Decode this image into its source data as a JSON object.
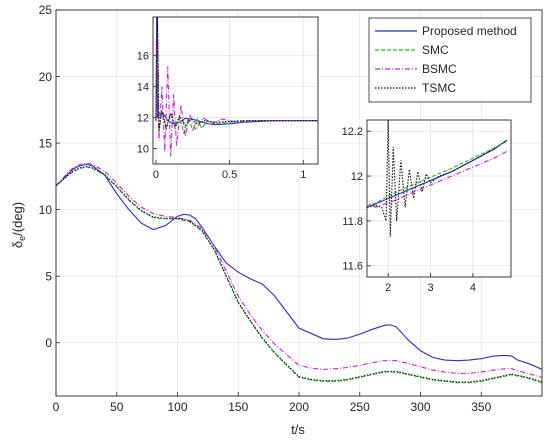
{
  "chart_data": {
    "type": "line",
    "xlabel": "t/s",
    "ylabel_main": "δ",
    "ylabel_sub": "e",
    "ylabel_tail": "/(deg)",
    "xlim": [
      0,
      400
    ],
    "ylim": [
      -4,
      25
    ],
    "xticks": [
      "0",
      "50",
      "100",
      "150",
      "200",
      "250",
      "300",
      "350"
    ],
    "yticks": [
      "0",
      "5",
      "10",
      "15",
      "20",
      "25"
    ],
    "colors": {
      "proposed": "#2b2bd6",
      "smc": "#22bb22",
      "bsmc": "#cc22cc",
      "tsmc": "#111111"
    },
    "legend": {
      "position": "top-right",
      "entries": [
        "Proposed method",
        "SMC",
        "BSMC",
        "TSMC"
      ]
    },
    "series": [
      {
        "name": "Proposed method",
        "x": [
          0,
          5,
          10,
          15,
          20,
          25,
          30,
          40,
          50,
          60,
          70,
          80,
          90,
          100,
          105,
          110,
          115,
          120,
          130,
          140,
          150,
          160,
          170,
          180,
          190,
          200,
          210,
          220,
          230,
          240,
          250,
          260,
          270,
          275,
          280,
          290,
          300,
          310,
          320,
          330,
          340,
          350,
          360,
          370,
          375,
          380,
          390,
          400
        ],
        "y": [
          11.8,
          12.2,
          12.7,
          13.1,
          13.3,
          13.4,
          13.3,
          12.6,
          11.2,
          10.0,
          9.0,
          8.5,
          8.8,
          9.5,
          9.65,
          9.6,
          9.3,
          8.7,
          7.3,
          6.0,
          5.3,
          4.8,
          4.4,
          3.5,
          2.3,
          1.1,
          0.7,
          0.3,
          0.25,
          0.35,
          0.65,
          1.0,
          1.3,
          1.35,
          1.2,
          0.2,
          -0.6,
          -1.1,
          -1.3,
          -1.35,
          -1.3,
          -1.2,
          -1.0,
          -0.95,
          -1.0,
          -1.3,
          -1.6,
          -2.0
        ]
      },
      {
        "name": "SMC",
        "x": [
          0,
          5,
          10,
          15,
          20,
          25,
          30,
          40,
          50,
          60,
          70,
          80,
          90,
          100,
          110,
          120,
          130,
          140,
          150,
          160,
          170,
          180,
          190,
          200,
          210,
          220,
          230,
          240,
          250,
          260,
          270,
          280,
          290,
          300,
          310,
          320,
          330,
          340,
          350,
          360,
          370,
          375,
          380,
          390,
          400
        ],
        "y": [
          11.8,
          12.2,
          12.6,
          12.9,
          13.1,
          13.2,
          13.1,
          12.6,
          11.7,
          10.7,
          9.9,
          9.4,
          9.3,
          9.3,
          9.1,
          8.4,
          7.0,
          5.0,
          3.0,
          1.6,
          0.3,
          -0.8,
          -1.7,
          -2.6,
          -2.8,
          -2.9,
          -2.9,
          -2.8,
          -2.6,
          -2.4,
          -2.2,
          -2.2,
          -2.4,
          -2.6,
          -2.8,
          -2.9,
          -3.0,
          -3.0,
          -2.9,
          -2.7,
          -2.5,
          -2.4,
          -2.5,
          -2.7,
          -3.0
        ]
      },
      {
        "name": "BSMC",
        "x": [
          0,
          5,
          10,
          15,
          20,
          25,
          30,
          40,
          50,
          60,
          70,
          80,
          90,
          100,
          110,
          120,
          130,
          140,
          150,
          160,
          170,
          180,
          190,
          200,
          210,
          220,
          230,
          240,
          250,
          260,
          270,
          280,
          290,
          300,
          310,
          320,
          330,
          340,
          350,
          360,
          370,
          375,
          380,
          390,
          400
        ],
        "y": [
          11.8,
          12.3,
          12.8,
          13.2,
          13.4,
          13.5,
          13.4,
          12.9,
          12.0,
          11.0,
          10.2,
          9.7,
          9.5,
          9.4,
          9.2,
          8.6,
          7.3,
          5.4,
          3.5,
          2.1,
          0.9,
          -0.1,
          -0.9,
          -1.7,
          -1.9,
          -2.0,
          -1.95,
          -1.85,
          -1.7,
          -1.5,
          -1.35,
          -1.35,
          -1.55,
          -1.8,
          -2.05,
          -2.2,
          -2.3,
          -2.3,
          -2.2,
          -2.05,
          -1.95,
          -1.95,
          -2.1,
          -2.35,
          -2.6
        ]
      },
      {
        "name": "TSMC",
        "x": [
          0,
          5,
          10,
          15,
          20,
          25,
          30,
          40,
          50,
          60,
          70,
          80,
          90,
          100,
          110,
          120,
          130,
          140,
          150,
          160,
          170,
          180,
          190,
          200,
          210,
          220,
          230,
          240,
          250,
          260,
          270,
          280,
          290,
          300,
          310,
          320,
          330,
          340,
          350,
          360,
          370,
          375,
          380,
          390,
          400
        ],
        "y": [
          11.8,
          12.2,
          12.6,
          12.95,
          13.15,
          13.25,
          13.15,
          12.65,
          11.75,
          10.75,
          9.95,
          9.45,
          9.35,
          9.35,
          9.15,
          8.45,
          7.05,
          5.05,
          3.05,
          1.65,
          0.35,
          -0.75,
          -1.65,
          -2.55,
          -2.75,
          -2.85,
          -2.85,
          -2.75,
          -2.55,
          -2.35,
          -2.15,
          -2.15,
          -2.35,
          -2.55,
          -2.75,
          -2.85,
          -2.95,
          -2.95,
          -2.85,
          -2.65,
          -2.45,
          -2.35,
          -2.45,
          -2.65,
          -2.95
        ]
      }
    ],
    "insets": [
      {
        "xlim": [
          -0.02,
          1.1
        ],
        "ylim": [
          9,
          18.5
        ],
        "xticks": [
          "0",
          "0.5",
          "1"
        ],
        "yticks": [
          "10",
          "12",
          "14",
          "16"
        ],
        "series": [
          {
            "name": "Proposed method",
            "x": [
              0,
              0.005,
              0.01,
              0.02,
              0.05,
              0.08,
              0.12,
              0.16,
              0.2,
              0.25,
              0.3,
              0.35,
              0.4,
              0.5,
              0.6,
              0.7,
              0.8,
              0.9,
              1.0,
              1.1
            ],
            "y": [
              11.8,
              18.5,
              12.0,
              12.3,
              12.25,
              11.8,
              11.6,
              11.7,
              11.95,
              11.9,
              11.75,
              11.6,
              11.55,
              11.6,
              11.7,
              11.75,
              11.8,
              11.8,
              11.8,
              11.8
            ]
          },
          {
            "name": "SMC",
            "x": [
              0,
              0.01,
              0.02,
              0.04,
              0.07,
              0.1,
              0.13,
              0.16,
              0.19,
              0.22,
              0.25,
              0.28,
              0.31,
              0.35,
              0.4,
              0.5,
              0.6,
              0.8,
              1.0,
              1.1
            ],
            "y": [
              11.8,
              18.5,
              11.0,
              12.5,
              11.3,
              12.2,
              11.3,
              12.0,
              11.0,
              12.0,
              11.2,
              11.9,
              11.3,
              11.8,
              11.6,
              11.7,
              11.8,
              11.8,
              11.8,
              11.8
            ]
          },
          {
            "name": "BSMC",
            "x": [
              0,
              0.01,
              0.02,
              0.04,
              0.06,
              0.08,
              0.1,
              0.12,
              0.14,
              0.17,
              0.2,
              0.23,
              0.27,
              0.32,
              0.38,
              0.45,
              0.55,
              0.7,
              0.9,
              1.1
            ],
            "y": [
              11.8,
              18.5,
              10.5,
              14.0,
              9.8,
              15.3,
              9.5,
              13.5,
              10.2,
              12.8,
              10.8,
              12.2,
              11.2,
              12.0,
              11.6,
              11.9,
              11.7,
              11.8,
              11.8,
              11.8
            ]
          },
          {
            "name": "TSMC",
            "x": [
              0,
              0.01,
              0.02,
              0.04,
              0.07,
              0.1,
              0.13,
              0.16,
              0.2,
              0.24,
              0.28,
              0.33,
              0.4,
              0.5,
              0.6,
              0.8,
              1.0,
              1.1
            ],
            "y": [
              11.8,
              18.5,
              11.2,
              12.4,
              11.3,
              12.3,
              11.4,
              12.1,
              11.5,
              11.9,
              11.6,
              11.8,
              11.7,
              11.75,
              11.8,
              11.8,
              11.8,
              11.8
            ]
          }
        ]
      },
      {
        "xlim": [
          1.5,
          4.9
        ],
        "ylim": [
          11.55,
          12.25
        ],
        "xticks": [
          "2",
          "3",
          "4"
        ],
        "yticks": [
          "11.6",
          "11.8",
          "12",
          "12.2"
        ],
        "series": [
          {
            "name": "Proposed method",
            "x": [
              1.5,
              2.0,
              2.5,
              3.0,
              3.5,
              4.0,
              4.5,
              4.8
            ],
            "y": [
              11.86,
              11.9,
              11.94,
              11.98,
              12.02,
              12.07,
              12.12,
              12.16
            ]
          },
          {
            "name": "SMC",
            "x": [
              1.5,
              2.0,
              2.5,
              3.0,
              3.5,
              4.0,
              4.5,
              4.8
            ],
            "y": [
              11.86,
              11.91,
              11.955,
              11.995,
              12.035,
              12.08,
              12.125,
              12.155
            ]
          },
          {
            "name": "BSMC",
            "x": [
              1.5,
              1.6,
              1.7,
              1.8,
              2.0,
              2.2,
              2.5,
              2.8,
              3.0,
              3.5,
              4.0,
              4.5,
              4.8
            ],
            "y": [
              11.86,
              11.88,
              11.86,
              11.87,
              11.88,
              11.895,
              11.92,
              11.945,
              11.96,
              12.0,
              12.04,
              12.08,
              12.11
            ]
          },
          {
            "name": "TSMC",
            "x": [
              1.5,
              1.7,
              1.85,
              1.95,
              2.0,
              2.05,
              2.12,
              2.2,
              2.3,
              2.4,
              2.5,
              2.6,
              2.7,
              2.8,
              2.9,
              3.0,
              3.2,
              3.5,
              4.0,
              4.5,
              4.8
            ],
            "y": [
              11.86,
              11.87,
              11.86,
              11.8,
              12.25,
              11.73,
              12.13,
              11.8,
              12.07,
              11.86,
              12.03,
              11.9,
              12.02,
              11.93,
              12.01,
              11.97,
              12.0,
              12.02,
              12.07,
              12.12,
              12.16
            ]
          }
        ]
      }
    ]
  }
}
